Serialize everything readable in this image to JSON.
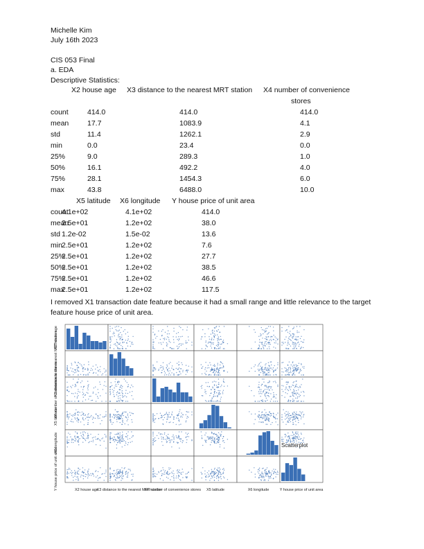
{
  "header": {
    "author": "Michelle Kim",
    "date": "July 16th 2023",
    "course": "CIS 053 Final",
    "section": "a.  EDA",
    "subsection": "Descriptive Statistics:"
  },
  "table1": {
    "headers": [
      "X2 house age",
      "X3 distance to the nearest MRT station",
      "X4 number of convenience",
      "stores"
    ],
    "rows": [
      {
        "label": "count",
        "v": [
          "414.0",
          "414.0",
          "414.0"
        ]
      },
      {
        "label": "mean",
        "v": [
          "17.7",
          "1083.9",
          "4.1"
        ]
      },
      {
        "label": "std",
        "v": [
          "11.4",
          "1262.1",
          "2.9"
        ]
      },
      {
        "label": "min",
        "v": [
          "0.0",
          "23.4",
          "0.0"
        ]
      },
      {
        "label": "25%",
        "v": [
          "9.0",
          "289.3",
          "1.0"
        ]
      },
      {
        "label": "50%",
        "v": [
          "16.1",
          "492.2",
          "4.0"
        ]
      },
      {
        "label": "75%",
        "v": [
          "28.1",
          "1454.3",
          "6.0"
        ]
      },
      {
        "label": "max",
        "v": [
          "43.8",
          "6488.0",
          "10.0"
        ]
      }
    ]
  },
  "table2": {
    "headers": [
      "X5 latitude",
      "X6 longitude",
      "Y house price of unit area"
    ],
    "rows": [
      {
        "label": "count",
        "v": [
          "4.1e+02",
          "4.1e+02",
          "414.0"
        ]
      },
      {
        "label": "mean",
        "v": [
          "2.5e+01",
          "1.2e+02",
          "38.0"
        ]
      },
      {
        "label": "std",
        "v": [
          "1.2e-02",
          "1.5e-02",
          "13.6"
        ]
      },
      {
        "label": "min",
        "v": [
          "2.5e+01",
          "1.2e+02",
          "7.6"
        ]
      },
      {
        "label": "25%",
        "v": [
          "2.5e+01",
          "1.2e+02",
          "27.7"
        ]
      },
      {
        "label": "50%",
        "v": [
          "2.5e+01",
          "1.2e+02",
          "38.5"
        ]
      },
      {
        "label": "75%",
        "v": [
          "2.5e+01",
          "1.2e+02",
          "46.6"
        ]
      },
      {
        "label": "max",
        "v": [
          "2.5e+01",
          "1.2e+02",
          "117.5"
        ]
      }
    ]
  },
  "paragraph": "I removed X1 transaction date feature because it had a small range and little relevance to the target feature house price of unit area.",
  "figure": {
    "annotation": "Scatterplot",
    "point_color": "#3a6fb5",
    "variables": [
      {
        "short": "X2",
        "label": "X2 house age",
        "mean": 17.7,
        "std": 11.4,
        "min": 0.0,
        "max": 43.8,
        "q1": 9.0,
        "median": 16.1,
        "q3": 28.1
      },
      {
        "short": "X3",
        "label": "X3 distance to the nearest MRT station",
        "mean": 1083.9,
        "std": 1262.1,
        "min": 23.4,
        "max": 6488.0,
        "q1": 289.3,
        "median": 492.2,
        "q3": 1454.3
      },
      {
        "short": "X4",
        "label": "X4 number of convenience stores",
        "mean": 4.1,
        "std": 2.9,
        "min": 0.0,
        "max": 10.0,
        "q1": 1.0,
        "median": 4.0,
        "q3": 6.0
      },
      {
        "short": "X5",
        "label": "X5 latitude",
        "mean": 24.969,
        "std": 0.012,
        "min": 24.93,
        "max": 25.01,
        "q1": 24.963,
        "median": 24.971,
        "q3": 24.977
      },
      {
        "short": "X6",
        "label": "X6 longitude",
        "mean": 121.533,
        "std": 0.015,
        "min": 121.47,
        "max": 121.56,
        "q1": 121.528,
        "median": 121.539,
        "q3": 121.543
      },
      {
        "short": "Y",
        "label": "Y house price of unit area",
        "mean": 38.0,
        "std": 13.6,
        "min": 7.6,
        "max": 117.5,
        "q1": 27.7,
        "median": 38.5,
        "q3": 46.6
      }
    ]
  }
}
